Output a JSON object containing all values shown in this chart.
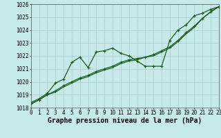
{
  "title": "Graphe pression niveau de la mer (hPa)",
  "bg_color": "#c6eaea",
  "grid_color": "#aacaca",
  "line_color": "#1a5c1a",
  "x_min": 0,
  "x_max": 23,
  "y_min": 1018,
  "y_max": 1026,
  "series1_x": [
    0,
    1,
    2,
    3,
    4,
    5,
    6,
    7,
    8,
    9,
    10,
    11,
    12,
    13,
    14,
    15,
    16,
    17,
    18,
    19,
    20,
    21,
    22,
    23
  ],
  "series1_y": [
    1018.4,
    1018.7,
    1019.1,
    1019.9,
    1020.2,
    1021.5,
    1021.9,
    1021.1,
    1022.3,
    1022.4,
    1022.6,
    1022.2,
    1022.0,
    1021.6,
    1021.2,
    1021.2,
    1021.2,
    1023.2,
    1024.0,
    1024.4,
    1025.1,
    1025.3,
    1025.6,
    1025.8
  ],
  "series2_x": [
    0,
    1,
    2,
    3,
    4,
    5,
    6,
    7,
    8,
    9,
    10,
    11,
    12,
    13,
    14,
    15,
    16,
    17,
    18,
    19,
    20,
    21,
    22,
    23
  ],
  "series2_y": [
    1018.3,
    1018.6,
    1019.0,
    1019.3,
    1019.7,
    1020.0,
    1020.3,
    1020.5,
    1020.8,
    1021.0,
    1021.2,
    1021.5,
    1021.7,
    1021.8,
    1021.9,
    1022.1,
    1022.4,
    1022.7,
    1023.2,
    1023.8,
    1024.3,
    1024.9,
    1025.4,
    1025.8
  ],
  "series3_x": [
    0,
    1,
    2,
    3,
    4,
    5,
    6,
    7,
    8,
    9,
    10,
    11,
    12,
    13,
    14,
    15,
    16,
    17,
    18,
    19,
    20,
    21,
    22,
    23
  ],
  "series3_y": [
    1018.3,
    1018.6,
    1019.0,
    1019.2,
    1019.6,
    1019.9,
    1020.2,
    1020.4,
    1020.7,
    1020.9,
    1021.1,
    1021.4,
    1021.6,
    1021.7,
    1021.9,
    1022.0,
    1022.3,
    1022.6,
    1023.1,
    1023.7,
    1024.2,
    1024.9,
    1025.4,
    1025.8
  ],
  "tick_fontsize": 5.5,
  "title_fontsize": 7,
  "marker_size": 3,
  "line_width": 0.9,
  "y_ticks": [
    1018,
    1019,
    1020,
    1021,
    1022,
    1023,
    1024,
    1025,
    1026
  ]
}
